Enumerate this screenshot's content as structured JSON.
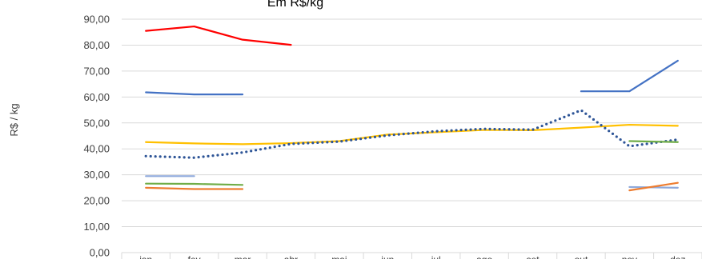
{
  "chart_data": {
    "type": "line",
    "title": "Em R$/kg",
    "ylabel": "R$ / kg",
    "xlabel": "",
    "ylim": [
      0,
      90
    ],
    "yticks": [
      "0,00",
      "10,00",
      "20,00",
      "30,00",
      "40,00",
      "50,00",
      "60,00",
      "70,00",
      "80,00",
      "90,00"
    ],
    "categories": [
      "jan",
      "fev",
      "mar",
      "abr",
      "mai",
      "jun",
      "jul",
      "ago",
      "set",
      "out",
      "nov",
      "dez"
    ],
    "grid": true,
    "legend": "none",
    "series": [
      {
        "color": "#ff0000",
        "style": "solid",
        "values": [
          85.5,
          87.2,
          82.1,
          80.1,
          null,
          null,
          null,
          null,
          null,
          null,
          null,
          null
        ]
      },
      {
        "color": "#4472c4",
        "style": "solid",
        "values": [
          61.8,
          61.0,
          61.0,
          null,
          null,
          null,
          null,
          null,
          null,
          62.2,
          62.2,
          74.0
        ]
      },
      {
        "color": "#ffc000",
        "style": "solid",
        "values": [
          42.6,
          42.1,
          41.8,
          42.2,
          43.0,
          45.5,
          46.4,
          47.3,
          47.2,
          48.2,
          49.3,
          48.9
        ]
      },
      {
        "color": "#2e5597",
        "style": "dotted",
        "values": [
          37.2,
          36.6,
          38.6,
          41.9,
          42.8,
          45.2,
          46.8,
          47.7,
          47.4,
          54.9,
          41.0,
          43.6
        ]
      },
      {
        "color": "#8ea9db",
        "style": "solid",
        "values": [
          29.5,
          29.5,
          null,
          null,
          null,
          null,
          null,
          null,
          null,
          null,
          25.3,
          25.0
        ]
      },
      {
        "color": "#70ad47",
        "style": "solid",
        "values": [
          26.6,
          26.5,
          26.1,
          null,
          null,
          null,
          null,
          null,
          null,
          null,
          43.0,
          42.6
        ]
      },
      {
        "color": "#ed7d31",
        "style": "solid",
        "values": [
          25.0,
          24.5,
          24.5,
          null,
          null,
          null,
          null,
          null,
          null,
          null,
          24.0,
          26.9
        ]
      }
    ]
  }
}
